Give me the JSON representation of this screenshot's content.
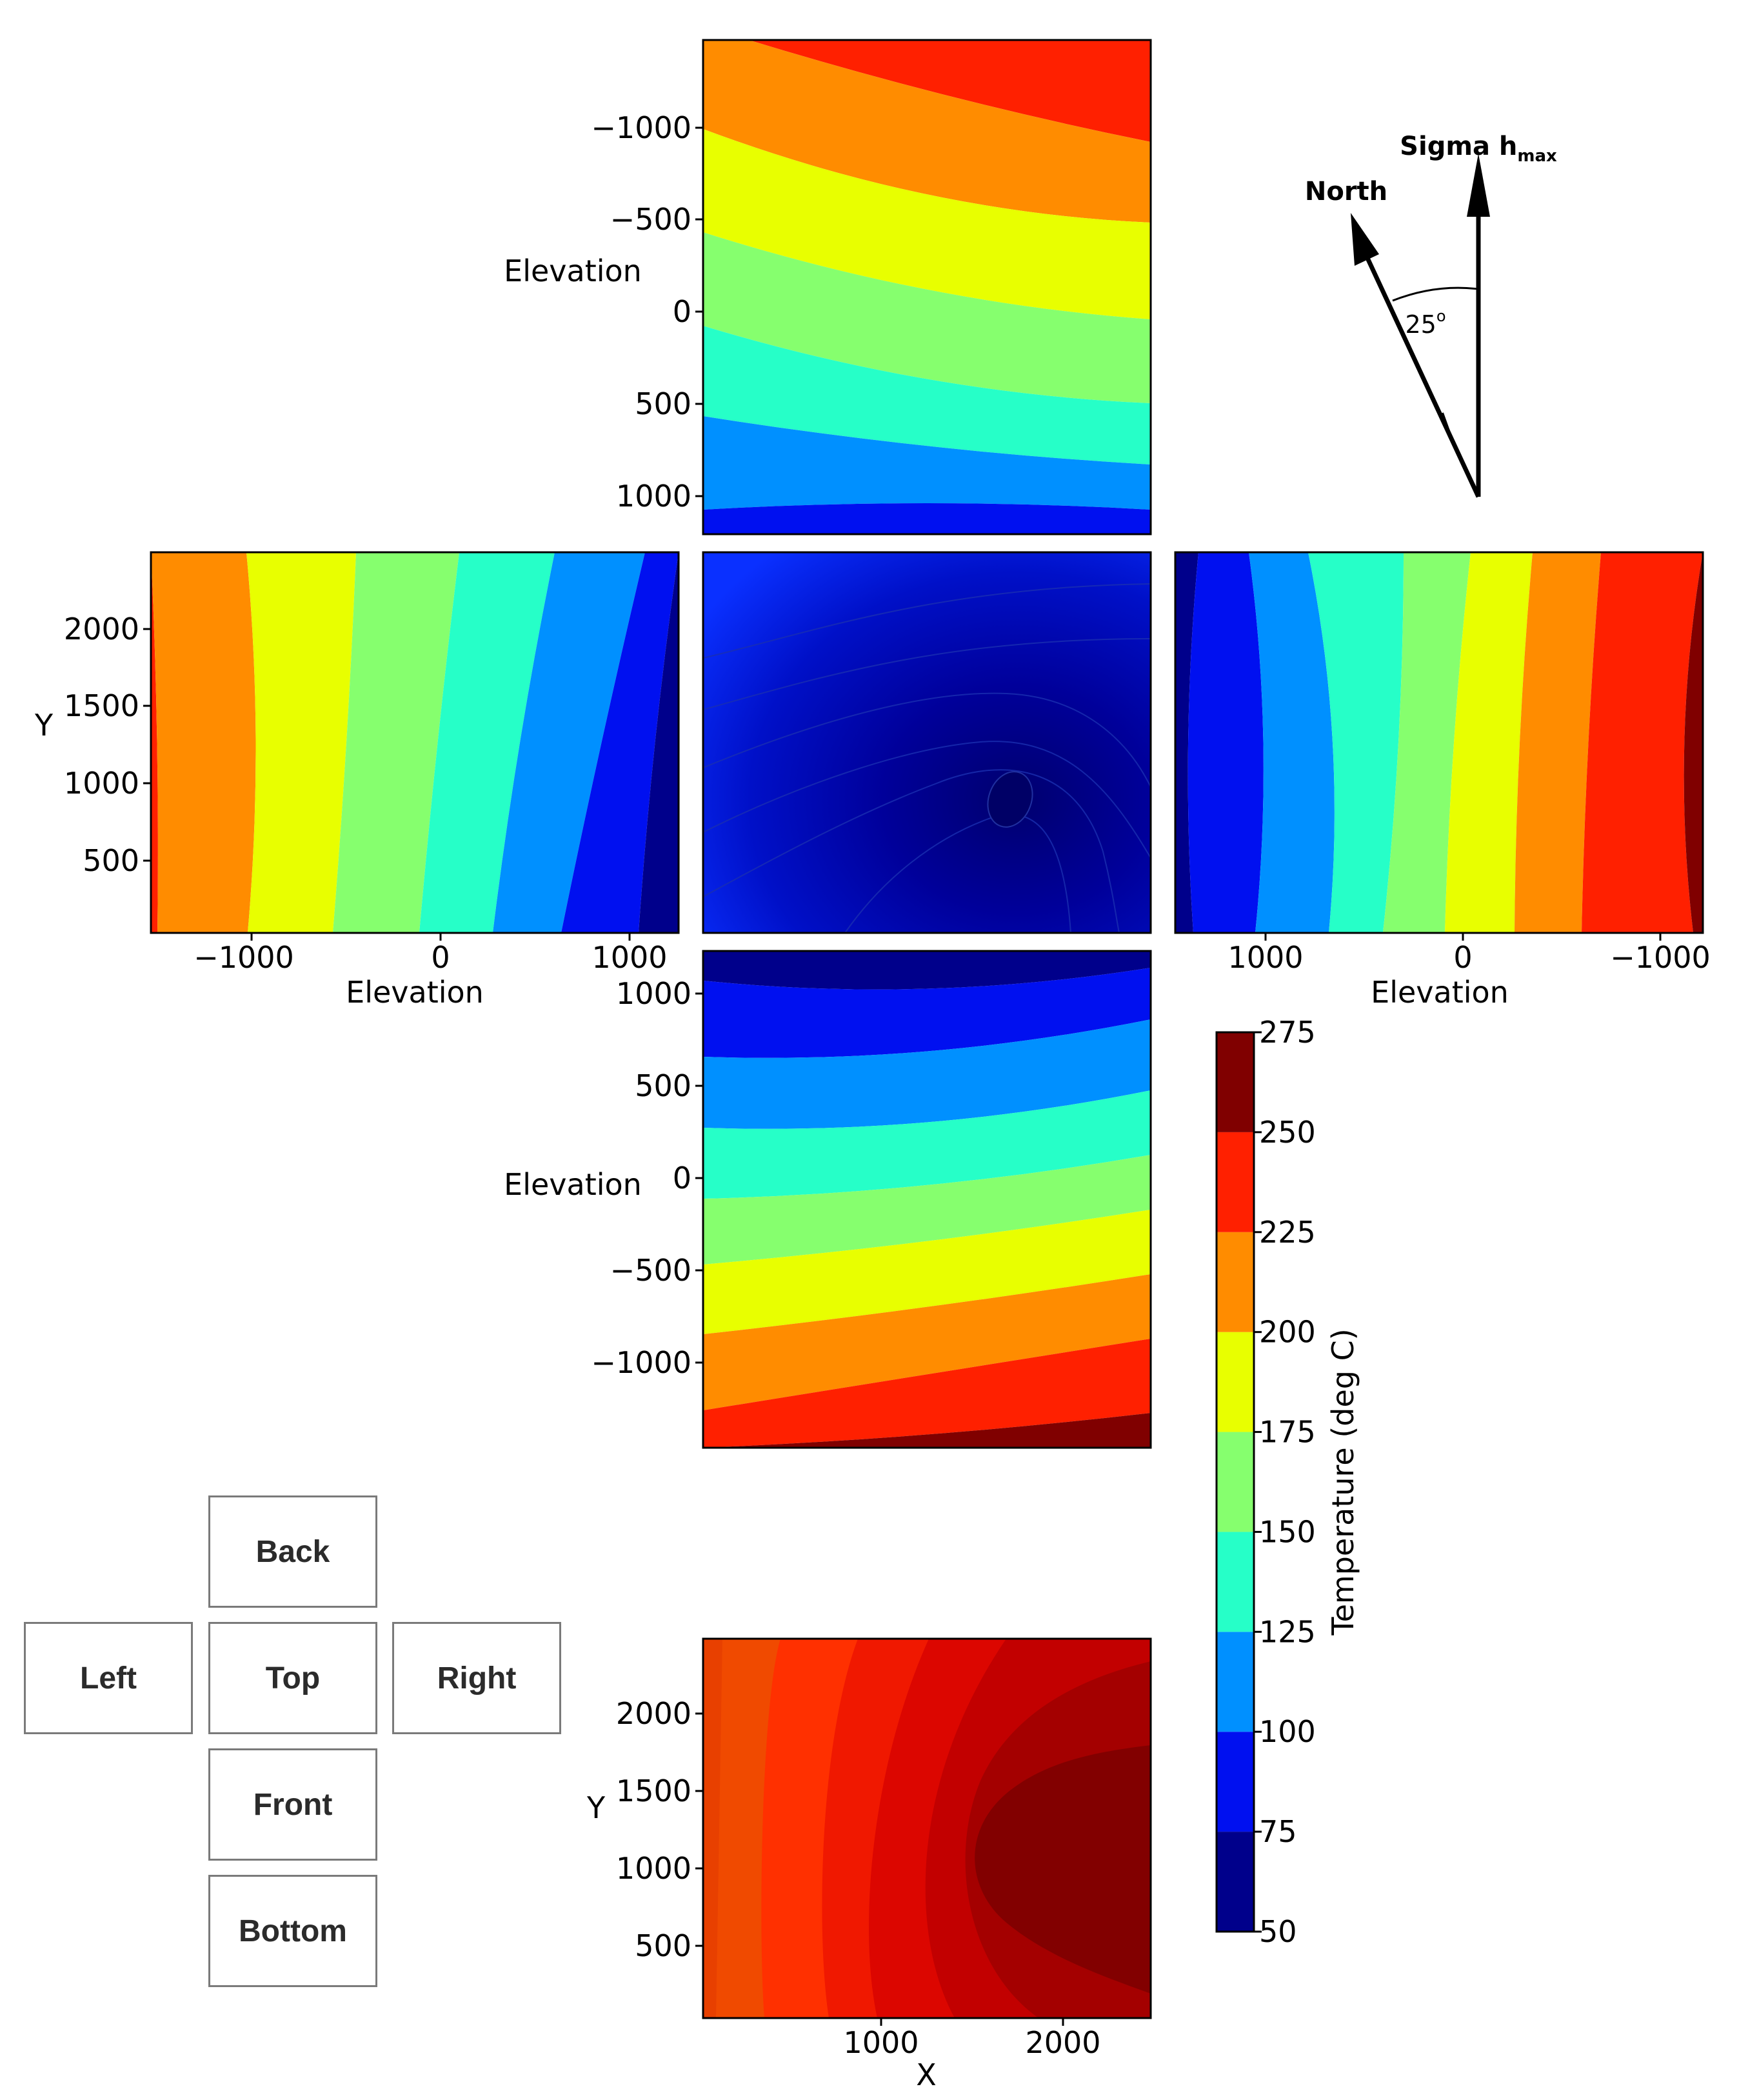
{
  "chart_data": {
    "type": "heatmap",
    "subtype": "filled-contour cube-net",
    "colorbar": {
      "label": "Temperature (deg C)",
      "levels": [
        50,
        75,
        100,
        125,
        150,
        175,
        200,
        225,
        250,
        275
      ],
      "colors": [
        "#00008b",
        "#0010f0",
        "#0090ff",
        "#26ffc8",
        "#86ff6e",
        "#e8ff00",
        "#ff8c00",
        "#ff2000",
        "#800000"
      ]
    },
    "panels": [
      {
        "id": "back",
        "xlabel": "",
        "ylabel": "Elevation",
        "yticks": [
          "−1000",
          "−500",
          "0",
          "500",
          "1000"
        ],
        "bands_y_fraction": [
          0.0,
          0.18,
          0.38,
          0.56,
          0.71,
          0.86,
          0.98,
          1.0
        ],
        "band_colors": [
          "#ff2000",
          "#ff8c00",
          "#e8ff00",
          "#86ff6e",
          "#26ffc8",
          "#0090ff",
          "#0010f0",
          "#00008b"
        ]
      },
      {
        "id": "left",
        "xlabel": "Elevation",
        "ylabel": "Y",
        "xticks": [
          "−1000",
          "0",
          "1000"
        ],
        "yticks": [
          "2000",
          "1500",
          "1000",
          "500"
        ],
        "band_colors": [
          "#ff2000",
          "#ff8c00",
          "#e8ff00",
          "#86ff6e",
          "#26ffc8",
          "#0090ff",
          "#0010f0",
          "#00008b"
        ]
      },
      {
        "id": "top",
        "xlabel": "",
        "ylabel": "",
        "range_deg_c": [
          50,
          100
        ]
      },
      {
        "id": "right",
        "xlabel": "Elevation",
        "ylabel": "",
        "xticks": [
          "1000",
          "0",
          "−1000"
        ],
        "band_colors": [
          "#00008b",
          "#0010f0",
          "#0090ff",
          "#26ffc8",
          "#86ff6e",
          "#e8ff00",
          "#ff8c00",
          "#ff2000",
          "#800000"
        ]
      },
      {
        "id": "front",
        "xlabel": "",
        "ylabel": "Elevation",
        "yticks": [
          "1000",
          "500",
          "0",
          "−500",
          "−1000"
        ],
        "band_colors": [
          "#00008b",
          "#0010f0",
          "#0090ff",
          "#26ffc8",
          "#86ff6e",
          "#e8ff00",
          "#ff8c00",
          "#ff2000",
          "#800000"
        ]
      },
      {
        "id": "bottom",
        "xlabel": "X",
        "ylabel": "Y",
        "xticks": [
          "1000",
          "2000"
        ],
        "yticks": [
          "2000",
          "1500",
          "1000",
          "500"
        ],
        "range_deg_c": [
          225,
          275
        ]
      }
    ],
    "compass": {
      "north_label": "North",
      "sigma_label": "Sigma h",
      "sigma_subscript": "max",
      "angle_label": "25",
      "angle_unit": "o",
      "angle_deg": 25
    }
  },
  "nav": {
    "back": "Back",
    "left": "Left",
    "top": "Top",
    "right": "Right",
    "front": "Front",
    "bottom": "Bottom"
  }
}
